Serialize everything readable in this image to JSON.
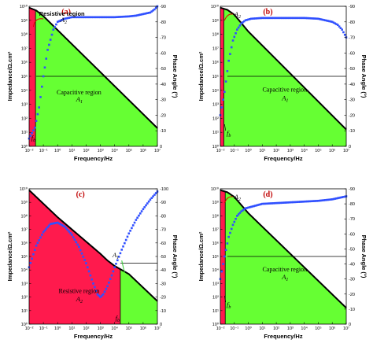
{
  "chart_data": [
    {
      "type": "line",
      "panel_label": "(a)",
      "xlabel": "Frequency/Hz",
      "ylabel": "Impedance/Ω.cm²",
      "y2label": "Phase Angle (°)",
      "x_scale": "log",
      "y_scale": "log",
      "xlim_exp": [
        -2,
        7
      ],
      "ylim_exp": [
        0,
        10
      ],
      "y2lim": [
        0,
        -90
      ],
      "x_ticks": [
        "10⁻²",
        "10⁻¹",
        "10⁰",
        "10¹",
        "10²",
        "10³",
        "10⁴",
        "10⁵",
        "10⁶",
        "10⁷"
      ],
      "y_ticks": [
        "10⁰",
        "10¹",
        "10²",
        "10³",
        "10⁴",
        "10⁵",
        "10⁶",
        "10⁷",
        "10⁸",
        "10⁹",
        "10¹⁰"
      ],
      "y2_ticks": [
        "0",
        "-10",
        "-20",
        "-30",
        "-40",
        "-50",
        "-60",
        "-70",
        "-80",
        "-90"
      ],
      "series": [
        {
          "name": "impedance",
          "x_exp": [
            -2,
            -1.5,
            -1,
            -0.5,
            0,
            1,
            2,
            3,
            4,
            5,
            6,
            7
          ],
          "y_exp": [
            9.9,
            9.7,
            9.3,
            8.8,
            8.3,
            7.3,
            6.3,
            5.3,
            4.3,
            3.3,
            2.3,
            1.3
          ]
        },
        {
          "name": "phase",
          "x_exp": [
            -2,
            -1.6,
            -1.3,
            -1,
            -0.7,
            -0.3,
            0,
            0.5,
            1,
            2,
            3,
            4,
            5,
            5.5,
            6,
            6.5,
            6.8,
            7
          ],
          "y": [
            -5,
            -12,
            -25,
            -45,
            -62,
            -75,
            -80,
            -82,
            -83,
            -83,
            -83,
            -83,
            -83.5,
            -84,
            -85,
            -86,
            -88,
            -90
          ]
        }
      ],
      "hline_phase": -45,
      "capacitive_region": {
        "label": "Capacitive region",
        "symbol": "A",
        "sub": "1"
      },
      "resistive_region": {
        "label": "Resistive region",
        "symbol": "A",
        "sub": "2"
      },
      "fb": {
        "symbol": "f",
        "sub": "b",
        "x_exp": -1.55
      }
    },
    {
      "type": "line",
      "panel_label": "(b)",
      "xlabel": "Frequency/Hz",
      "ylabel": "Impedance/Ω.cm²",
      "y2label": "Phase Angle (°)",
      "x_scale": "log",
      "y_scale": "log",
      "xlim_exp": [
        -2,
        7
      ],
      "ylim_exp": [
        0,
        10
      ],
      "y2lim": [
        0,
        -90
      ],
      "x_ticks": [
        "10⁻²",
        "10⁻¹",
        "10⁰",
        "10¹",
        "10²",
        "10³",
        "10⁴",
        "10⁵",
        "10⁶",
        "10⁷"
      ],
      "y_ticks": [
        "10⁰",
        "10¹",
        "10²",
        "10³",
        "10⁴",
        "10⁵",
        "10⁶",
        "10⁷",
        "10⁸",
        "10⁹",
        "10¹⁰"
      ],
      "y2_ticks": [
        "0",
        "-10",
        "-20",
        "-30",
        "-40",
        "-50",
        "-60",
        "-70",
        "-80",
        "-90"
      ],
      "series": [
        {
          "name": "impedance",
          "x_exp": [
            -2,
            -1.5,
            -1,
            -0.5,
            0,
            1,
            2,
            3,
            4,
            5,
            6,
            7
          ],
          "y_exp": [
            9.9,
            9.75,
            9.4,
            8.8,
            8.2,
            7.2,
            6.2,
            5.2,
            4.2,
            3.2,
            2.2,
            1.2
          ]
        },
        {
          "name": "phase",
          "x_exp": [
            -2,
            -1.7,
            -1.4,
            -1.1,
            -0.8,
            -0.5,
            -0.2,
            0.2,
            1,
            2,
            3,
            4,
            5,
            5.5,
            6,
            6.4,
            6.7,
            7
          ],
          "y": [
            -20,
            -35,
            -55,
            -68,
            -75,
            -79,
            -81,
            -82,
            -82.5,
            -82.5,
            -82.5,
            -82.5,
            -82,
            -81,
            -80,
            -78,
            -75,
            -70
          ]
        }
      ],
      "hline_phase": -45,
      "capacitive_region": {
        "label": "Capacitive region",
        "symbol": "A",
        "sub": "1"
      },
      "resistive_region": {
        "label": "",
        "symbol": "A",
        "sub": "2"
      },
      "fb": {
        "symbol": "f",
        "sub": "b",
        "x_exp": -1.75
      }
    },
    {
      "type": "line",
      "panel_label": "(c)",
      "xlabel": "Frequency/Hz",
      "ylabel": "Impedance/Ω.cm²",
      "y2label": "Phase Angle (°)",
      "x_scale": "log",
      "y_scale": "log",
      "xlim_exp": [
        -2,
        7
      ],
      "ylim_exp": [
        0,
        10
      ],
      "y2lim": [
        0,
        -100
      ],
      "x_ticks": [
        "10⁻²",
        "10⁻¹",
        "10⁰",
        "10¹",
        "10²",
        "10³",
        "10⁴",
        "10⁵",
        "10⁶",
        "10⁷"
      ],
      "y_ticks": [
        "10⁰",
        "10¹",
        "10²",
        "10³",
        "10⁴",
        "10⁵",
        "10⁶",
        "10⁷",
        "10⁸",
        "10⁹",
        "10¹⁰"
      ],
      "y2_ticks": [
        "0",
        "-10",
        "-20",
        "-30",
        "-40",
        "-50",
        "-60",
        "-70",
        "-80",
        "-90",
        "-100"
      ],
      "series": [
        {
          "name": "impedance",
          "x_exp": [
            -2,
            -1,
            0,
            1,
            2,
            3,
            3.5,
            4,
            4.5,
            5,
            6,
            7
          ],
          "y_exp": [
            9.9,
            8.9,
            7.9,
            7.0,
            6.1,
            5.2,
            4.7,
            4.3,
            4.0,
            3.7,
            2.7,
            1.7
          ]
        },
        {
          "name": "phase",
          "x_exp": [
            -2,
            -1.5,
            -1,
            -0.5,
            0,
            0.5,
            1,
            1.5,
            2,
            2.5,
            2.8,
            3,
            3.2,
            3.5,
            3.8,
            4,
            4.5,
            5,
            5.5,
            6,
            6.5,
            7
          ],
          "y": [
            -42,
            -58,
            -68,
            -74,
            -75,
            -72,
            -66,
            -57,
            -45,
            -30,
            -22,
            -20,
            -22,
            -28,
            -36,
            -42,
            -55,
            -67,
            -77,
            -85,
            -92,
            -98
          ]
        }
      ],
      "hline_phase": -45,
      "capacitive_region": {
        "label": "",
        "symbol": "A",
        "sub": "1"
      },
      "resistive_region": {
        "label": "Resistive region",
        "symbol": "A",
        "sub": "2"
      },
      "fb": {
        "symbol": "f",
        "sub": "b",
        "x_exp": 4.4
      }
    },
    {
      "type": "line",
      "panel_label": "(d)",
      "xlabel": "Frequency/Hz",
      "ylabel": "Impedance/Ω.cm²",
      "y2label": "Phase Angle (°)",
      "x_scale": "log",
      "y_scale": "log",
      "xlim_exp": [
        -2,
        7
      ],
      "ylim_exp": [
        0,
        10
      ],
      "y2lim": [
        0,
        -90
      ],
      "x_ticks": [
        "10⁻²",
        "10⁻¹",
        "10⁰",
        "10¹",
        "10²",
        "10³",
        "10⁴",
        "10⁵",
        "10⁶",
        "10⁷"
      ],
      "y_ticks": [
        "10⁰",
        "10¹",
        "10²",
        "10³",
        "10⁴",
        "10⁵",
        "10⁶",
        "10⁷",
        "10⁸",
        "10⁹",
        "10¹⁰"
      ],
      "y2_ticks": [
        "0",
        "-10",
        "-20",
        "-30",
        "-40",
        "-50",
        "-60",
        "-70",
        "-80",
        "-90"
      ],
      "series": [
        {
          "name": "impedance",
          "x_exp": [
            -2,
            -1.5,
            -1,
            -0.5,
            0,
            1,
            2,
            3,
            4,
            5,
            6,
            7
          ],
          "y_exp": [
            9.9,
            9.75,
            9.4,
            8.8,
            8.2,
            7.2,
            6.2,
            5.2,
            4.2,
            3.2,
            2.2,
            1.2
          ]
        },
        {
          "name": "phase",
          "x_exp": [
            -2,
            -1.7,
            -1.4,
            -1.1,
            -0.8,
            -0.5,
            -0.2,
            0.2,
            0.6,
            1,
            2,
            3,
            4,
            5,
            6,
            7
          ],
          "y": [
            -30,
            -45,
            -58,
            -66,
            -72,
            -75,
            -77,
            -78,
            -79,
            -80,
            -80.5,
            -81,
            -81.5,
            -82,
            -83,
            -85
          ]
        }
      ],
      "hline_phase": -45,
      "capacitive_region": {
        "label": "Capacitive region",
        "symbol": "A",
        "sub": "1"
      },
      "resistive_region": {
        "label": "",
        "symbol": "A",
        "sub": "2"
      },
      "fb": {
        "symbol": "f",
        "sub": "b",
        "x_exp": -1.65
      }
    }
  ],
  "colors": {
    "capacitive_fill": "#66ff33",
    "resistive_fill": "#ff1a4d",
    "impedance_line": "#000000",
    "phase_marker": "#3050ff",
    "panel_label": "#c00000",
    "arrow_red": "#e00000",
    "arrow_green": "#33cc33"
  }
}
